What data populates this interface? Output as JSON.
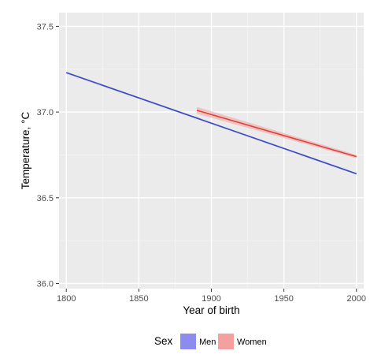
{
  "chart_data": {
    "type": "line",
    "title": "",
    "xlabel": "Year of birth",
    "ylabel": "Temperature, °C",
    "xlim": [
      1795,
      2005
    ],
    "ylim": [
      35.97,
      37.58
    ],
    "x_ticks": [
      1800,
      1850,
      1900,
      1950,
      2000
    ],
    "x_tick_labels": [
      "1800",
      "1850",
      "1900",
      "1950",
      "2000"
    ],
    "y_ticks": [
      36.0,
      36.5,
      37.0,
      37.5
    ],
    "y_tick_labels": [
      "36.0",
      "36.5",
      "37.0",
      "37.5"
    ],
    "grid": true,
    "legend": {
      "title": "Sex",
      "placement": "bottom",
      "entries": [
        "Men",
        "Women"
      ]
    },
    "series": [
      {
        "name": "Men",
        "color": "#3b4cc0",
        "fill": "#8c8cf0",
        "x": [
          1800,
          2000
        ],
        "y": [
          37.23,
          36.64
        ],
        "ci_low": [
          37.225,
          36.635
        ],
        "ci_high": [
          37.235,
          36.645
        ]
      },
      {
        "name": "Women",
        "color": "#d9443a",
        "fill": "#f4a0a0",
        "x": [
          1890,
          2000
        ],
        "y": [
          37.01,
          36.74
        ],
        "ci_low": [
          36.99,
          36.73
        ],
        "ci_high": [
          37.03,
          36.75
        ]
      }
    ],
    "colors": {
      "panel": "#ebebeb",
      "grid_major": "#ffffff",
      "grid_minor": "#f5f5f5"
    }
  }
}
